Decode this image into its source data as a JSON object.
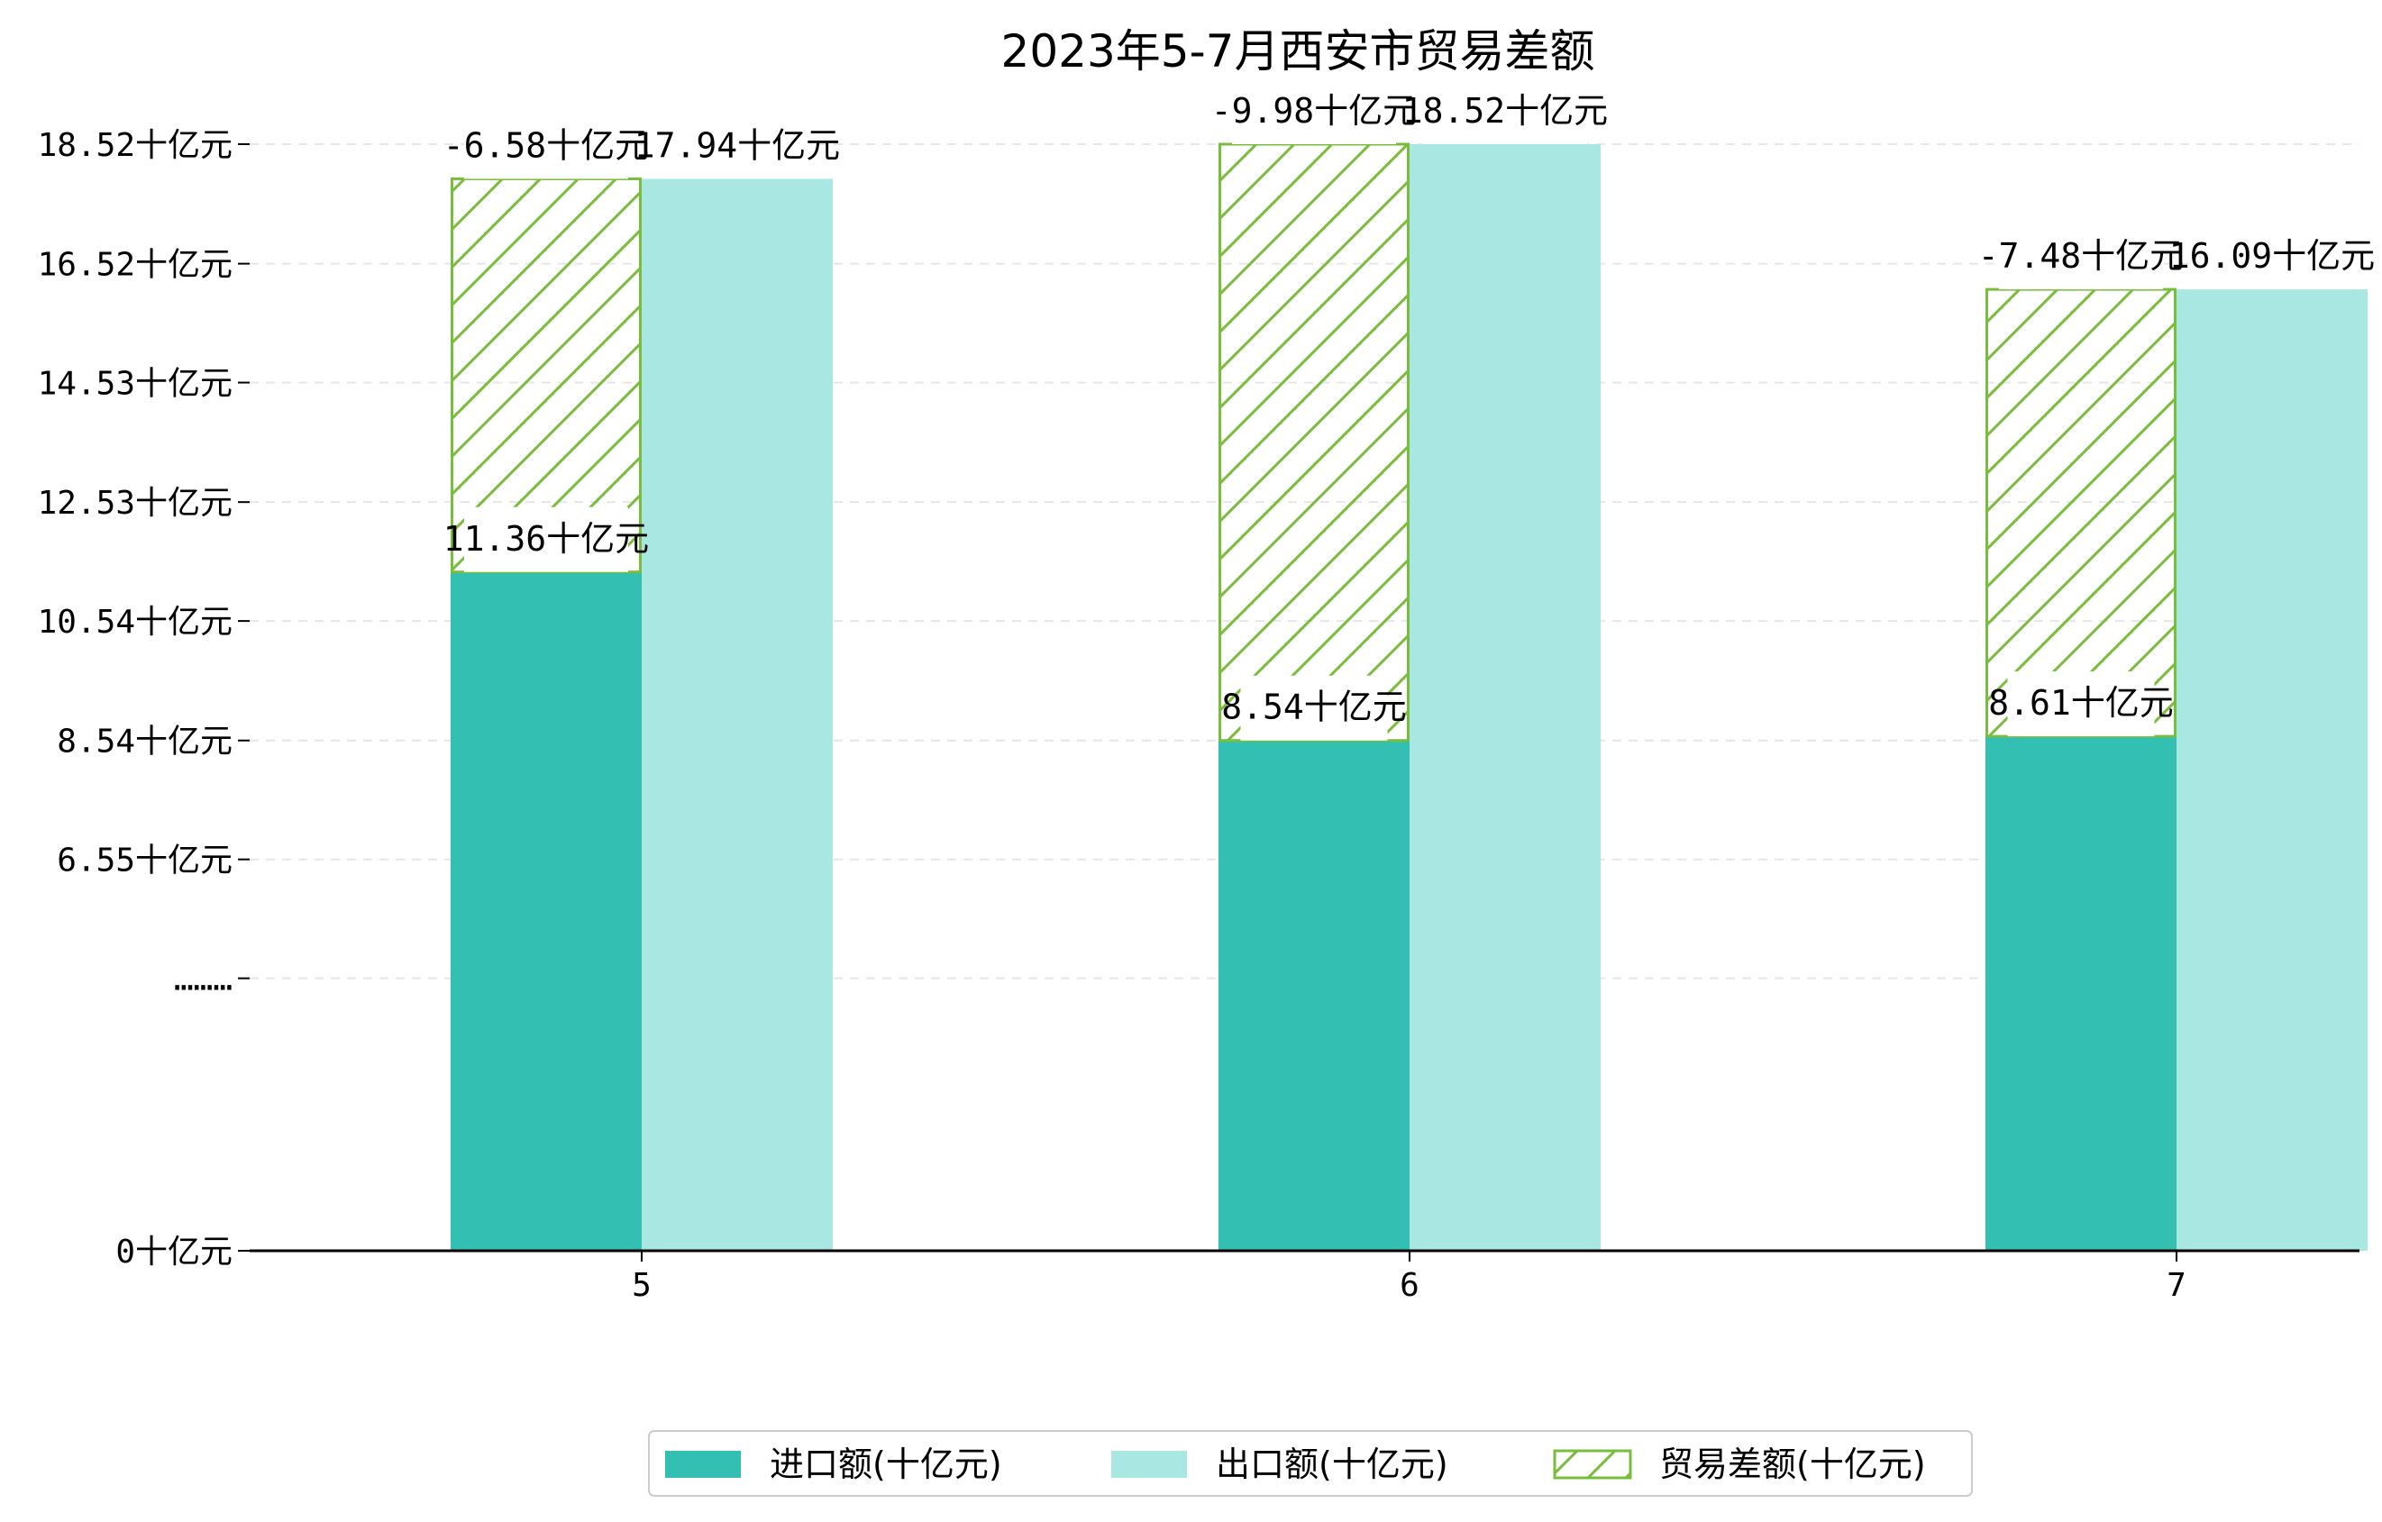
{
  "chart_data": {
    "type": "bar",
    "title": "2023年5-7月西安市贸易差额",
    "categories": [
      "5",
      "6",
      "7"
    ],
    "y_ticks": [
      "0十亿元",
      "………",
      "6.55十亿元",
      "8.54十亿元",
      "10.54十亿元",
      "12.53十亿元",
      "14.53十亿元",
      "16.52十亿元",
      "18.52十亿元"
    ],
    "y_tick_values": [
      0,
      4.56,
      6.55,
      8.54,
      10.54,
      12.53,
      14.53,
      16.52,
      18.52
    ],
    "ylim": [
      0,
      19.3
    ],
    "grid": "horizontal dashed",
    "legend_position": "bottom",
    "series": [
      {
        "name": "进口额(十亿元)",
        "values": [
          11.36,
          8.54,
          8.61
        ],
        "labels": [
          "11.36十亿元",
          "8.54十亿元",
          "8.61十亿元"
        ],
        "color": "#33c0b3"
      },
      {
        "name": "出口额(十亿元)",
        "values": [
          17.94,
          18.52,
          16.09
        ],
        "labels": [
          "17.94十亿元",
          "18.52十亿元",
          "16.09十亿元"
        ],
        "color": "#a8e7e2"
      },
      {
        "name": "贸易差额(十亿元)",
        "values": [
          -6.58,
          -9.98,
          -7.48
        ],
        "labels": [
          "-6.58十亿元",
          "-9.98十亿元",
          "-7.48十亿元"
        ],
        "color": "#78bd3c"
      }
    ]
  }
}
